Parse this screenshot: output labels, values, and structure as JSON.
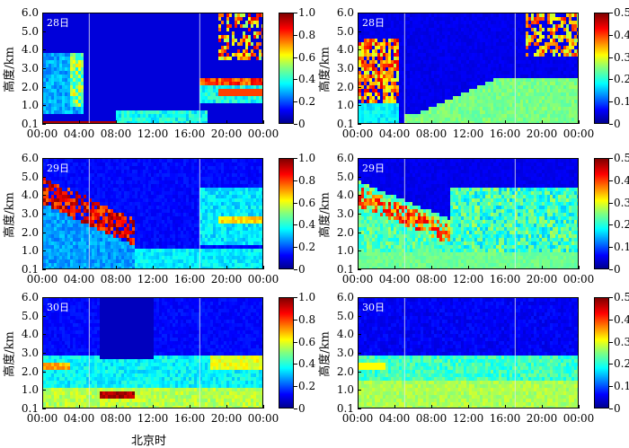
{
  "figure": {
    "xlabel": "北京时"
  },
  "chart_data": [
    {
      "type": "heatmap",
      "day_label": "28日",
      "ylabel": "高度/km",
      "x_ticks": [
        "00:00",
        "04:00",
        "08:00",
        "12:00",
        "16:00",
        "20:00",
        "00:00"
      ],
      "y_ticks": [
        "6.0",
        "5.0",
        "4.0",
        "3.0",
        "2.0",
        "1.0",
        "0.1"
      ],
      "ylim": [
        0.1,
        6.0
      ],
      "colorbar_ticks": [
        "1.0",
        "0.8",
        "0.6",
        "0.4",
        "0.2",
        "0"
      ],
      "clim": [
        0,
        1.0
      ]
    },
    {
      "type": "heatmap",
      "day_label": "28日",
      "ylabel": "高度/km",
      "x_ticks": [
        "00:00",
        "04:00",
        "08:00",
        "12:00",
        "16:00",
        "20:00",
        "00:00"
      ],
      "y_ticks": [
        "6.0",
        "5.0",
        "4.0",
        "3.0",
        "2.0",
        "1.0",
        "0.1"
      ],
      "ylim": [
        0.1,
        6.0
      ],
      "colorbar_ticks": [
        "0.5",
        "0.4",
        "0.3",
        "0.2",
        "0.1",
        "0"
      ],
      "clim": [
        0,
        0.5
      ]
    },
    {
      "type": "heatmap",
      "day_label": "29日",
      "ylabel": "高度/km",
      "x_ticks": [
        "00:00",
        "04:00",
        "08:00",
        "12:00",
        "16:00",
        "20:00",
        "00:00"
      ],
      "y_ticks": [
        "6.0",
        "5.0",
        "4.0",
        "3.0",
        "2.0",
        "1.0",
        "0.1"
      ],
      "ylim": [
        0.1,
        6.0
      ],
      "colorbar_ticks": [
        "1.0",
        "0.8",
        "0.6",
        "0.4",
        "0.2",
        "0"
      ],
      "clim": [
        0,
        1.0
      ]
    },
    {
      "type": "heatmap",
      "day_label": "29日",
      "ylabel": "高度/km",
      "x_ticks": [
        "00:00",
        "04:00",
        "08:00",
        "12:00",
        "16:00",
        "20:00",
        "00:00"
      ],
      "y_ticks": [
        "6.0",
        "5.0",
        "4.0",
        "3.0",
        "2.0",
        "1.0",
        "0.1"
      ],
      "ylim": [
        0.1,
        6.0
      ],
      "colorbar_ticks": [
        "0.5",
        "0.4",
        "0.3",
        "0.2",
        "0.1",
        "0"
      ],
      "clim": [
        0,
        0.5
      ]
    },
    {
      "type": "heatmap",
      "day_label": "30日",
      "ylabel": "高度/km",
      "x_ticks": [
        "00:00",
        "04:00",
        "08:00",
        "12:00",
        "16:00",
        "20:00",
        "00:00"
      ],
      "y_ticks": [
        "6.0",
        "5.0",
        "4.0",
        "3.0",
        "2.0",
        "1.0",
        "0.1"
      ],
      "ylim": [
        0.1,
        6.0
      ],
      "colorbar_ticks": [
        "1.0",
        "0.8",
        "0.6",
        "0.4",
        "0.2",
        "0"
      ],
      "clim": [
        0,
        1.0
      ]
    },
    {
      "type": "heatmap",
      "day_label": "30日",
      "ylabel": "高度/km",
      "x_ticks": [
        "00:00",
        "04:00",
        "08:00",
        "12:00",
        "16:00",
        "20:00",
        "00:00"
      ],
      "y_ticks": [
        "6.0",
        "5.0",
        "4.0",
        "3.0",
        "2.0",
        "1.0",
        "0.1"
      ],
      "ylim": [
        0.1,
        6.0
      ],
      "colorbar_ticks": [
        "0.5",
        "0.4",
        "0.3",
        "0.2",
        "0.1",
        "0"
      ],
      "clim": [
        0,
        0.5
      ]
    }
  ]
}
